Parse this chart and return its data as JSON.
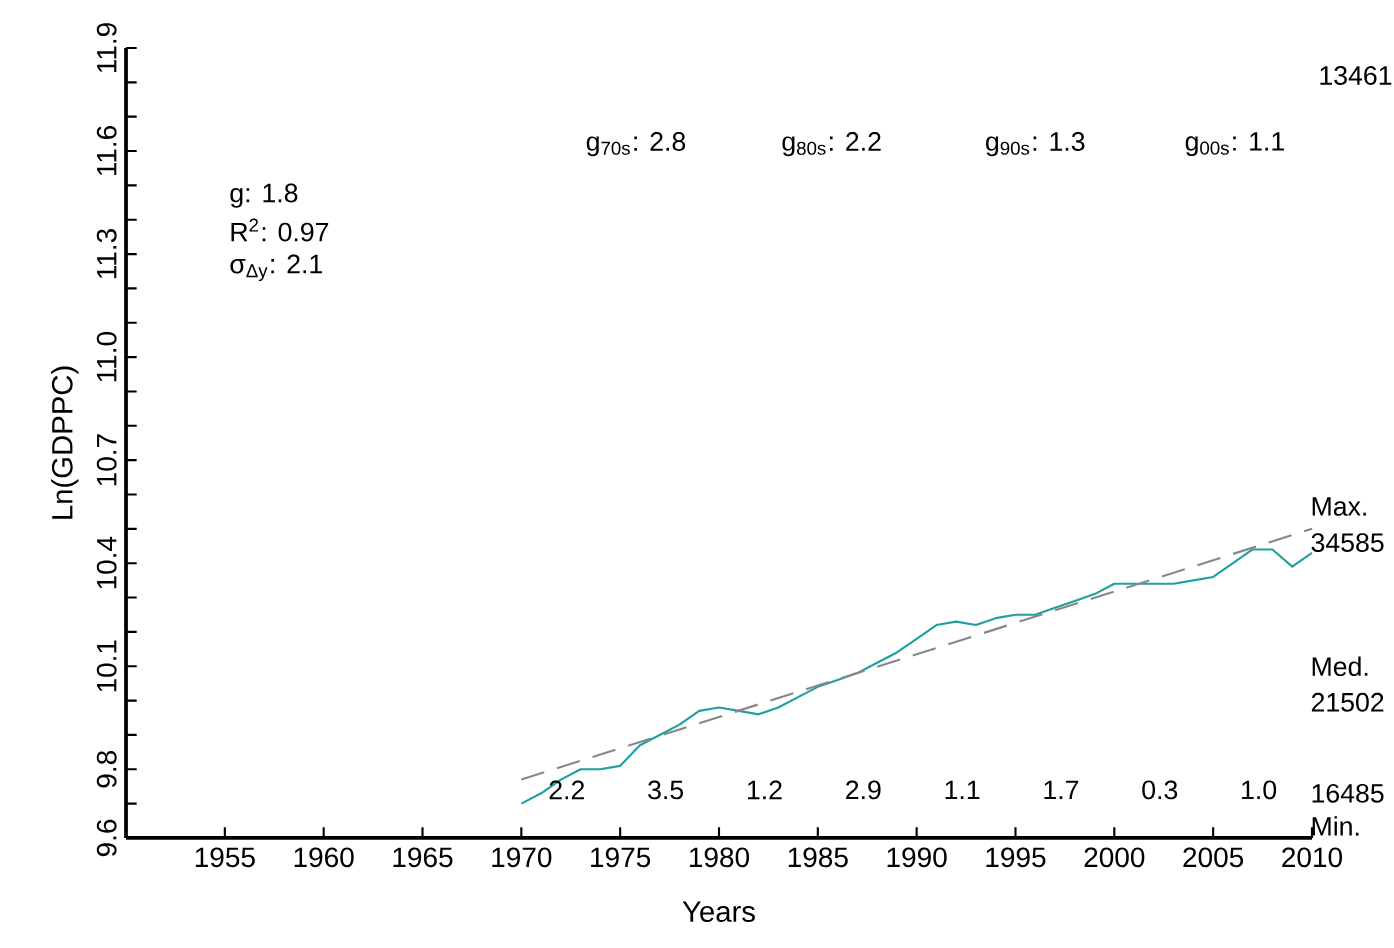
{
  "chart_data": {
    "type": "line",
    "xlabel": "Years",
    "ylabel": "Ln(GDPPC)",
    "xlim": [
      1950,
      2010
    ],
    "ylim": [
      9.6,
      11.9
    ],
    "xticks": [
      1955,
      1960,
      1965,
      1970,
      1975,
      1980,
      1985,
      1990,
      1995,
      2000,
      2005,
      2010
    ],
    "yticks": [
      9.6,
      {
        "value": 9.7,
        "label": null
      },
      9.8,
      {
        "value": 9.9,
        "label": null
      },
      {
        "value": 10.0,
        "label": null
      },
      10.1,
      {
        "value": 10.2,
        "label": null
      },
      {
        "value": 10.3,
        "label": null
      },
      10.4,
      {
        "value": 10.5,
        "label": null
      },
      {
        "value": 10.6,
        "label": null
      },
      10.7,
      {
        "value": 10.8,
        "label": null
      },
      {
        "value": 10.9,
        "label": null
      },
      {
        "value": 11.0,
        "label": "11.0"
      },
      {
        "value": 11.1,
        "label": null
      },
      {
        "value": 11.2,
        "label": null
      },
      11.3,
      {
        "value": 11.4,
        "label": null
      },
      {
        "value": 11.5,
        "label": null
      },
      11.6,
      {
        "value": 11.7,
        "label": null
      },
      {
        "value": 11.8,
        "label": null
      },
      11.9
    ],
    "x": [
      1970,
      1971,
      1972,
      1973,
      1974,
      1975,
      1976,
      1977,
      1978,
      1979,
      1980,
      1981,
      1982,
      1983,
      1984,
      1985,
      1986,
      1987,
      1988,
      1989,
      1990,
      1991,
      1992,
      1993,
      1994,
      1995,
      1996,
      1997,
      1998,
      1999,
      2000,
      2001,
      2002,
      2003,
      2004,
      2005,
      2006,
      2007,
      2008,
      2009,
      2010
    ],
    "series": [
      {
        "color": "#20a0a0",
        "values": [
          9.7,
          9.73,
          9.77,
          9.8,
          9.8,
          9.81,
          9.87,
          9.9,
          9.93,
          9.97,
          9.98,
          9.97,
          9.96,
          9.98,
          10.01,
          10.04,
          10.06,
          10.08,
          10.11,
          10.14,
          10.18,
          10.22,
          10.23,
          10.22,
          10.24,
          10.25,
          10.25,
          10.27,
          10.29,
          10.31,
          10.34,
          10.34,
          10.34,
          10.34,
          10.35,
          10.36,
          10.4,
          10.44,
          10.44,
          10.39,
          10.43
        ]
      },
      {
        "type": "line",
        "x": [
          1970,
          2010
        ],
        "values": [
          9.77,
          10.5
        ],
        "color": "#888888",
        "line_style": "dashed"
      }
    ],
    "annotations": [
      "13461",
      "g$_{70s}$: 2.8",
      "g$_{80s}$: 2.2",
      "g$_{90s}$: 1.3",
      "g$_{00s}$: 1.1",
      "g:    1.8",
      "R$^{2}$:  0.97",
      "σ$_{Δy}$: 2.1",
      "Max.",
      "34585",
      "Med.",
      "21502",
      "16485",
      "Min.",
      "2.2",
      "3.5",
      "1.2",
      "2.9",
      "1.1",
      "1.7",
      "0.3",
      "1.0"
    ]
  }
}
